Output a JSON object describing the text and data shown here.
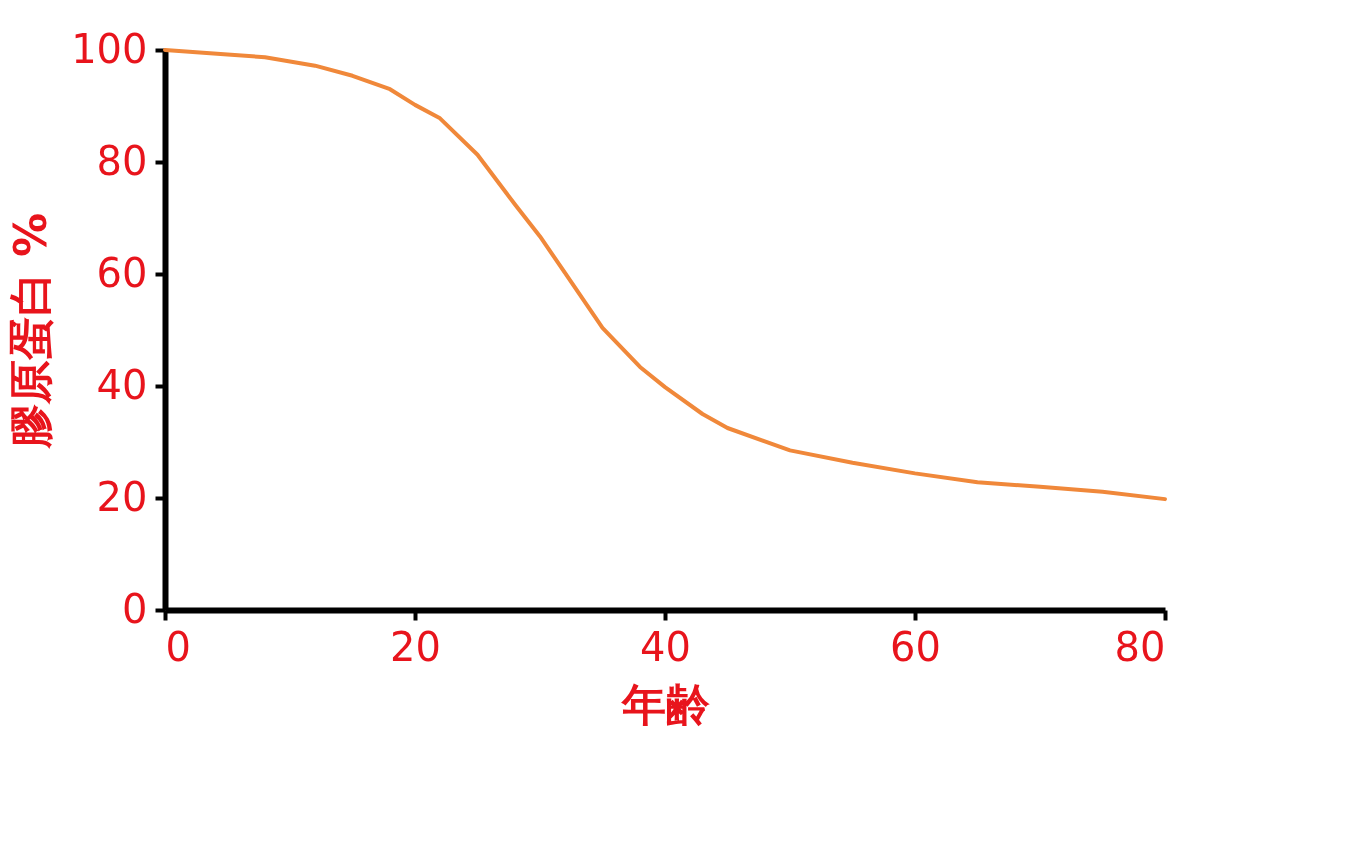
{
  "chart_data": {
    "type": "line",
    "xlabel": "年齢",
    "ylabel": "膠原蛋白 %",
    "x": [
      0,
      5,
      8,
      12,
      15,
      18,
      20,
      22,
      25,
      28,
      30,
      32,
      35,
      38,
      40,
      43,
      45,
      50,
      55,
      60,
      65,
      70,
      75,
      80
    ],
    "series": [
      {
        "color": "#f0883a",
        "values": [
          100,
          99.2,
          98.7,
          97.2,
          95.4,
          93,
          90.2,
          87.8,
          81.3,
          72.4,
          66.7,
          60.2,
          50.4,
          43.4,
          39.8,
          35,
          32.5,
          28.5,
          26.3,
          24.4,
          22.8,
          22,
          21.1,
          19.8
        ]
      }
    ],
    "xlim": [
      0,
      80
    ],
    "xticks": [
      0,
      20,
      40,
      60,
      80
    ],
    "ylim": [
      0,
      100
    ],
    "yticks": [
      0,
      20,
      40,
      60,
      80,
      100
    ],
    "grid": false,
    "marker": "none",
    "line_style": "solid"
  }
}
